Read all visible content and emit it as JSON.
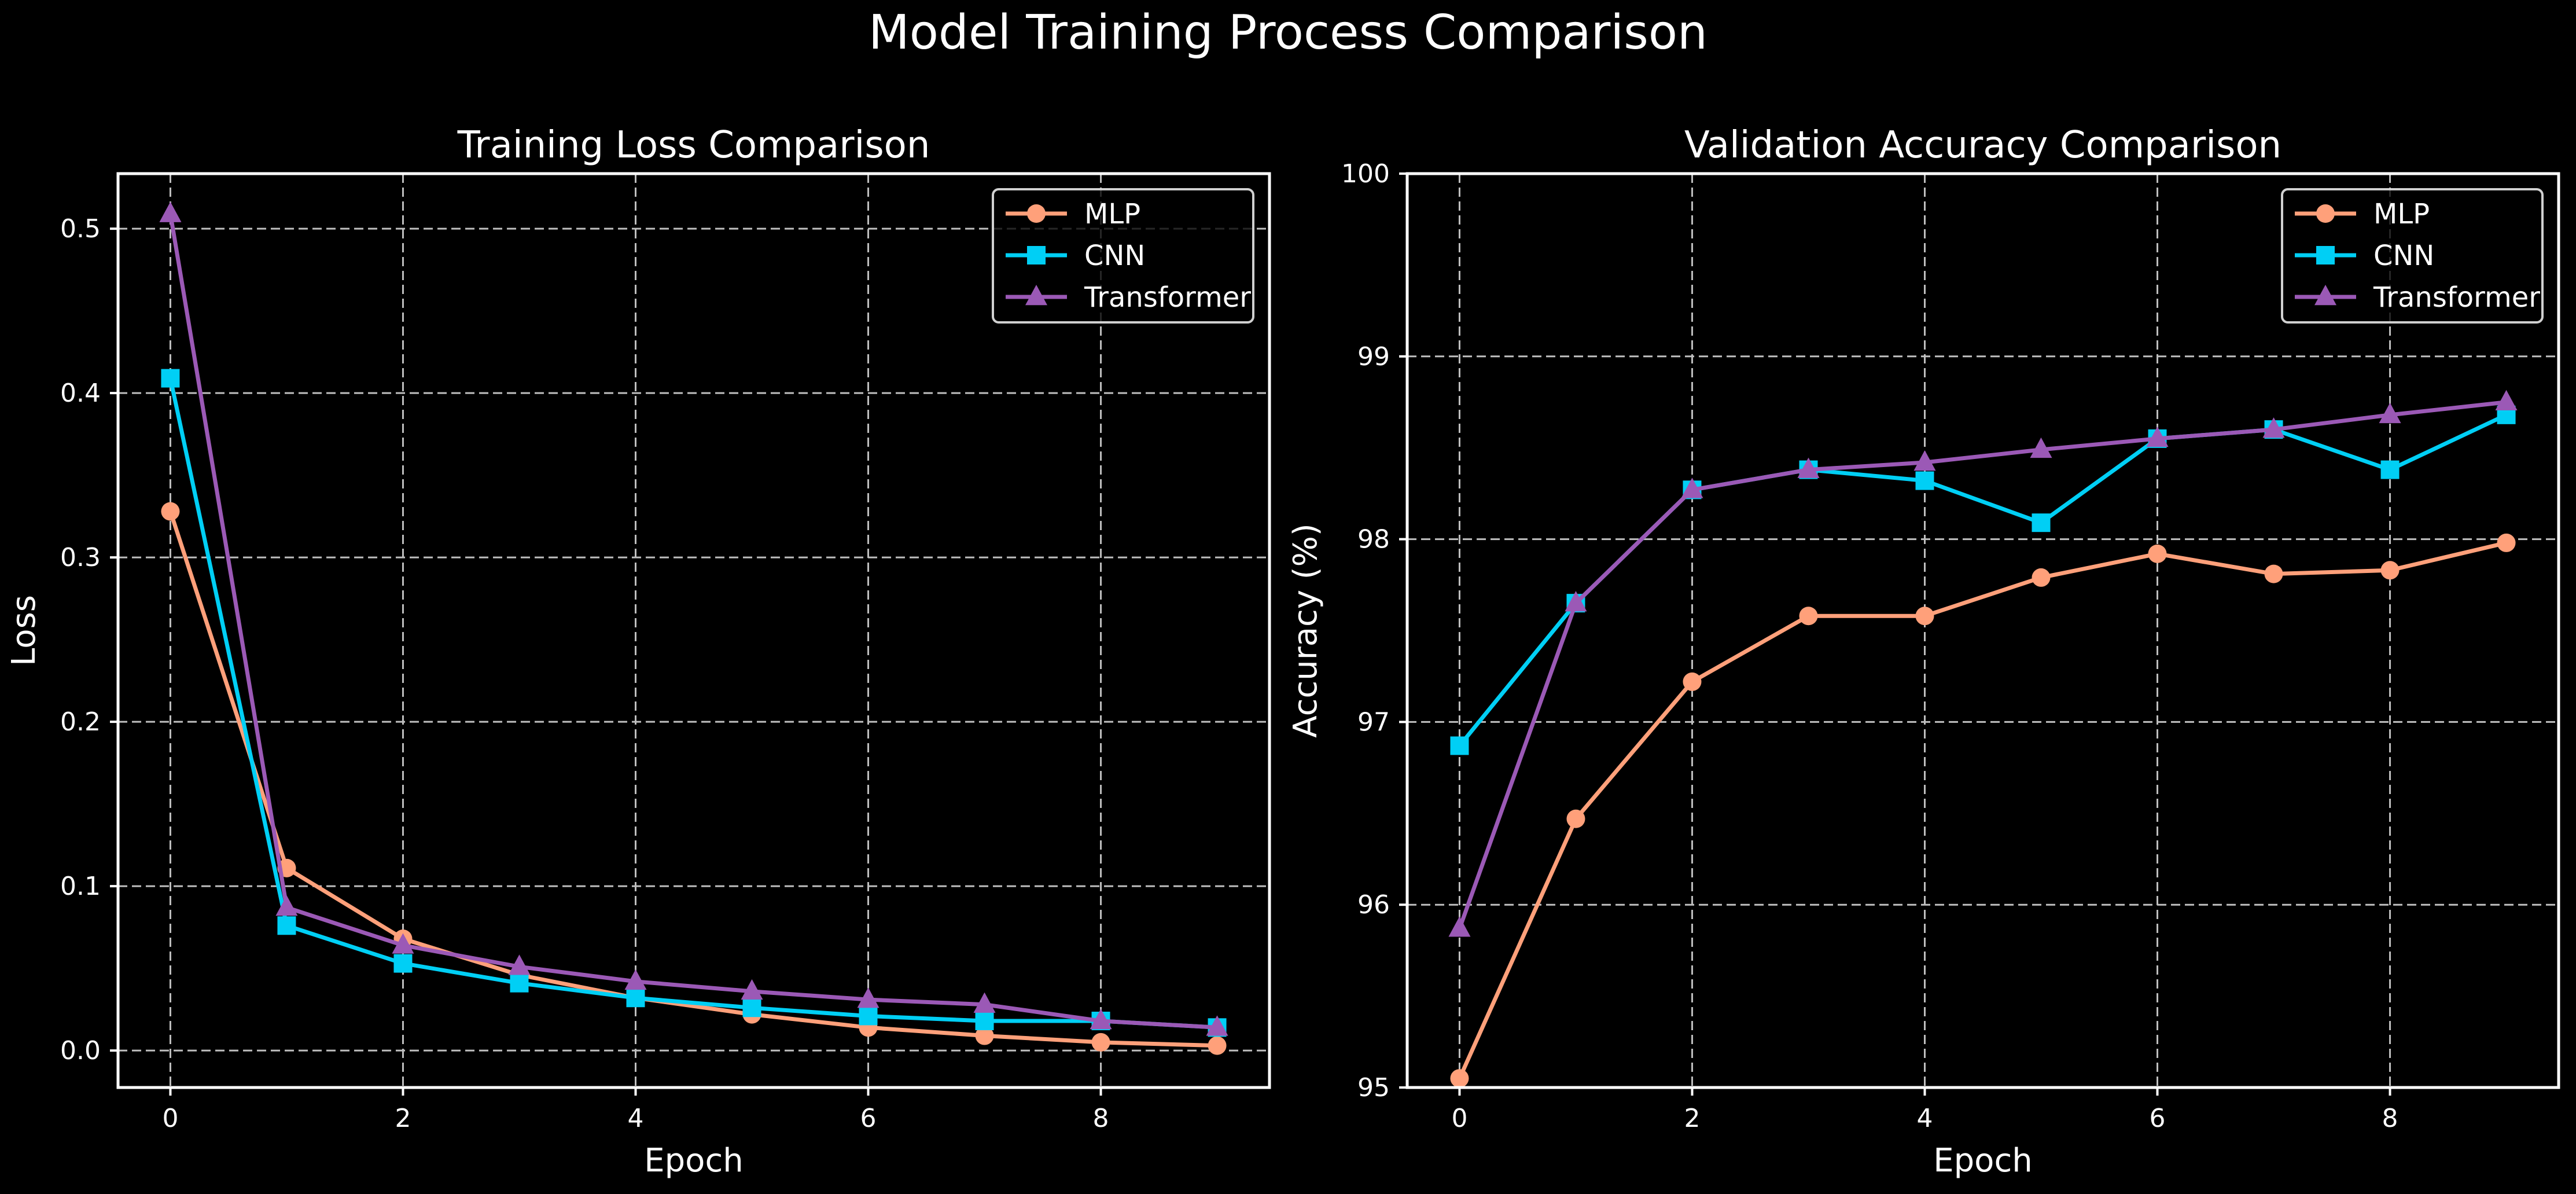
{
  "figure": {
    "title": "Model Training Process Comparison"
  },
  "chart_data": [
    {
      "type": "line",
      "title": "Training Loss Comparison",
      "xlabel": "Epoch",
      "ylabel": "Loss",
      "x": [
        0,
        1,
        2,
        3,
        4,
        5,
        6,
        7,
        8,
        9
      ],
      "xlim": [
        -0.45,
        9.45
      ],
      "ylim": [
        -0.0225,
        0.5335
      ],
      "xticks": [
        0,
        2,
        4,
        6,
        8
      ],
      "yticks": [
        0.0,
        0.1,
        0.2,
        0.3,
        0.4,
        0.5
      ],
      "ytick_labels": [
        "0.0",
        "0.1",
        "0.2",
        "0.3",
        "0.4",
        "0.5"
      ],
      "grid": true,
      "legend": "upper right",
      "series": [
        {
          "name": "MLP",
          "marker": "circle",
          "color": "#FFA07A",
          "values": [
            0.328,
            0.111,
            0.068,
            0.046,
            0.032,
            0.022,
            0.014,
            0.009,
            0.005,
            0.003
          ]
        },
        {
          "name": "CNN",
          "marker": "square",
          "color": "#00CFF5",
          "values": [
            0.409,
            0.076,
            0.053,
            0.041,
            0.032,
            0.026,
            0.021,
            0.018,
            0.018,
            0.014
          ]
        },
        {
          "name": "Transformer",
          "marker": "triangle",
          "color": "#9B59B6",
          "values": [
            0.509,
            0.087,
            0.064,
            0.051,
            0.042,
            0.036,
            0.031,
            0.028,
            0.018,
            0.014
          ]
        }
      ]
    },
    {
      "type": "line",
      "title": "Validation Accuracy Comparison",
      "xlabel": "Epoch",
      "ylabel": "Accuracy (%)",
      "x": [
        0,
        1,
        2,
        3,
        4,
        5,
        6,
        7,
        8,
        9
      ],
      "xlim": [
        -0.45,
        9.45
      ],
      "ylim": [
        95,
        100
      ],
      "xticks": [
        0,
        2,
        4,
        6,
        8
      ],
      "yticks": [
        95,
        96,
        97,
        98,
        99,
        100
      ],
      "ytick_labels": [
        "95",
        "96",
        "97",
        "98",
        "99",
        "100"
      ],
      "grid": true,
      "legend": "upper right",
      "series": [
        {
          "name": "MLP",
          "marker": "circle",
          "color": "#FFA07A",
          "values": [
            95.05,
            96.47,
            97.22,
            97.58,
            97.58,
            97.79,
            97.92,
            97.81,
            97.83,
            97.98
          ]
        },
        {
          "name": "CNN",
          "marker": "square",
          "color": "#00CFF5",
          "values": [
            96.87,
            97.65,
            98.27,
            98.38,
            98.32,
            98.09,
            98.55,
            98.6,
            98.38,
            98.68
          ]
        },
        {
          "name": "Transformer",
          "marker": "triangle",
          "color": "#9B59B6",
          "values": [
            95.87,
            97.65,
            98.27,
            98.38,
            98.42,
            98.49,
            98.55,
            98.6,
            98.68,
            98.75
          ]
        }
      ]
    }
  ]
}
